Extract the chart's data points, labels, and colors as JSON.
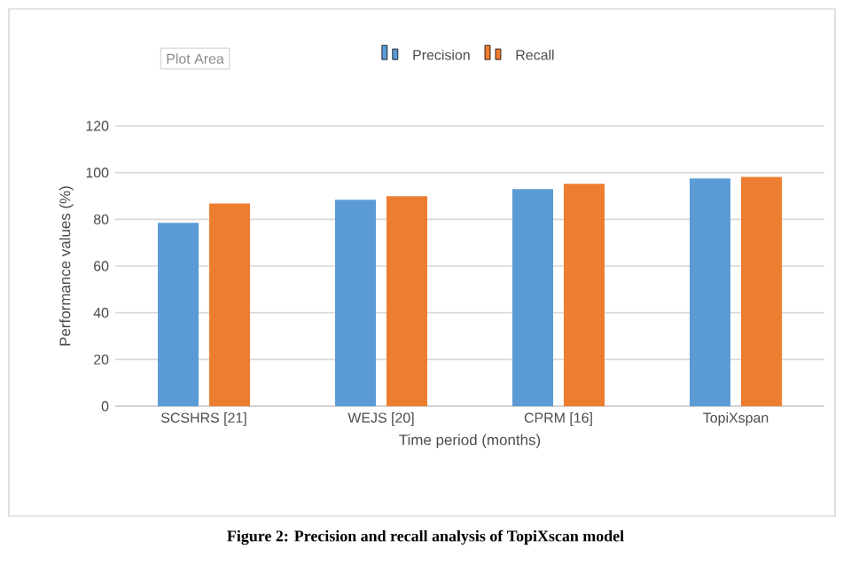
{
  "chart_data": {
    "type": "bar",
    "categories": [
      "SCSHRS [21]",
      "WEJS [20]",
      "CPRM [16]",
      "TopiXspan"
    ],
    "series": [
      {
        "name": "Precision",
        "color": "#5b9bd5",
        "values": [
          78.5,
          88.4,
          92.9,
          97.5
        ]
      },
      {
        "name": "Recall",
        "color": "#ed7d31",
        "values": [
          86.8,
          89.9,
          95.2,
          98.2
        ]
      }
    ],
    "xlabel": "Time period (months)",
    "ylabel": "Performance values (%)",
    "ylim": [
      0,
      120
    ],
    "yticks": [
      0,
      20,
      40,
      60,
      80,
      100,
      120
    ],
    "grid": "y",
    "legend": "top",
    "annotations": [
      "Plot Area",
      "Figure 2:  Precision and recall analysis of TopiXscan model"
    ]
  }
}
